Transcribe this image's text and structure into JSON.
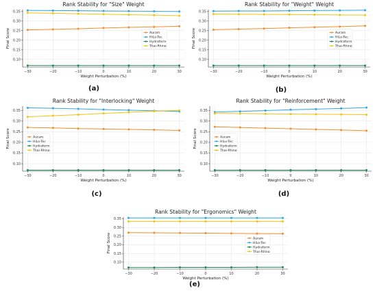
{
  "colors": {
    "Auram": "#f28e2b",
    "HiLo-Tec": "#2ea7e0",
    "Hydraform": "#1a8a4a",
    "Thai-Rhino": "#f1c40f",
    "grid": "#e3e3e3",
    "axis": "#333333"
  },
  "chart_data": [
    {
      "type": "line",
      "panel": "(a)",
      "title": "Rank Stability for \"Size\" Weight",
      "xlabel": "Weight Perturbation (%)",
      "ylabel": "Final Score",
      "x": [
        -30,
        -20,
        -10,
        0,
        10,
        20,
        30
      ],
      "xticks": [
        "−30",
        "−20",
        "−10",
        "0",
        "10",
        "20",
        "30"
      ],
      "xlim": [
        -32,
        32
      ],
      "ylim": [
        0.06,
        0.36
      ],
      "yticks": [
        "0.10",
        "0.15",
        "0.20",
        "0.25",
        "0.30",
        "0.35"
      ],
      "grid": true,
      "legend": "center-right",
      "series": [
        {
          "name": "Auram",
          "values": [
            0.254,
            0.257,
            0.26,
            0.264,
            0.267,
            0.27,
            0.273
          ]
        },
        {
          "name": "HiLo-Tec",
          "values": [
            0.356,
            0.355,
            0.354,
            0.353,
            0.352,
            0.351,
            0.35
          ]
        },
        {
          "name": "Hydraform",
          "values": [
            0.068,
            0.068,
            0.068,
            0.068,
            0.068,
            0.068,
            0.068
          ]
        },
        {
          "name": "Thai-Rhino",
          "values": [
            0.343,
            0.341,
            0.338,
            0.336,
            0.333,
            0.331,
            0.328
          ]
        }
      ]
    },
    {
      "type": "line",
      "panel": "(b)",
      "title": "Rank Stability for \"Weight\" Weight",
      "xlabel": "Weight Perturbation (%)",
      "ylabel": "Final Score",
      "x": [
        -30,
        -20,
        -10,
        0,
        10,
        20,
        30
      ],
      "xticks": [
        "−30",
        "−20",
        "−10",
        "0",
        "10",
        "20",
        "30"
      ],
      "xlim": [
        -32,
        32
      ],
      "ylim": [
        0.06,
        0.36
      ],
      "yticks": [
        "0.10",
        "0.15",
        "0.20",
        "0.25",
        "0.30",
        "0.35"
      ],
      "grid": true,
      "legend": "center-right",
      "series": [
        {
          "name": "Auram",
          "values": [
            0.255,
            0.258,
            0.261,
            0.265,
            0.268,
            0.271,
            0.275
          ]
        },
        {
          "name": "HiLo-Tec",
          "values": [
            0.352,
            0.353,
            0.353,
            0.354,
            0.355,
            0.356,
            0.357
          ]
        },
        {
          "name": "Hydraform",
          "values": [
            0.068,
            0.068,
            0.068,
            0.068,
            0.068,
            0.068,
            0.068
          ]
        },
        {
          "name": "Thai-Rhino",
          "values": [
            0.337,
            0.336,
            0.335,
            0.334,
            0.333,
            0.332,
            0.331
          ]
        }
      ]
    },
    {
      "type": "line",
      "panel": "(c)",
      "title": "Rank Stability for \"Interlocking\" Weight",
      "xlabel": "Weight Perturbation (%)",
      "ylabel": "Final Score",
      "x": [
        -30,
        -20,
        -10,
        0,
        10,
        20,
        30
      ],
      "xticks": [
        "−30",
        "−20",
        "−10",
        "0",
        "10",
        "20",
        "30"
      ],
      "xlim": [
        -32,
        32
      ],
      "ylim": [
        0.065,
        0.37
      ],
      "yticks": [
        "0.10",
        "0.15",
        "0.20",
        "0.25",
        "0.30",
        "0.35"
      ],
      "grid": true,
      "legend": "center-left",
      "series": [
        {
          "name": "Auram",
          "values": [
            0.27,
            0.268,
            0.265,
            0.263,
            0.261,
            0.259,
            0.256
          ]
        },
        {
          "name": "HiLo-Tec",
          "values": [
            0.362,
            0.36,
            0.357,
            0.354,
            0.351,
            0.348,
            0.345
          ]
        },
        {
          "name": "Hydraform",
          "values": [
            0.07,
            0.07,
            0.07,
            0.07,
            0.07,
            0.07,
            0.07
          ]
        },
        {
          "name": "Thai-Rhino",
          "values": [
            0.32,
            0.325,
            0.33,
            0.336,
            0.341,
            0.346,
            0.35
          ]
        }
      ]
    },
    {
      "type": "line",
      "panel": "(d)",
      "title": "Rank Stability for \"Reinforcement\" Weight",
      "xlabel": "Weight Perturbation (%)",
      "ylabel": "Final Score",
      "x": [
        -30,
        -20,
        -10,
        0,
        10,
        20,
        30
      ],
      "xticks": [
        "−30",
        "−20",
        "−10",
        "0",
        "10",
        "20",
        "30"
      ],
      "xlim": [
        -32,
        32
      ],
      "ylim": [
        0.065,
        0.37
      ],
      "yticks": [
        "0.10",
        "0.15",
        "0.20",
        "0.25",
        "0.30",
        "0.35"
      ],
      "grid": true,
      "legend": "center-left",
      "series": [
        {
          "name": "Auram",
          "values": [
            0.273,
            0.27,
            0.267,
            0.264,
            0.261,
            0.258,
            0.255
          ]
        },
        {
          "name": "HiLo-Tec",
          "values": [
            0.342,
            0.345,
            0.349,
            0.353,
            0.356,
            0.359,
            0.363
          ]
        },
        {
          "name": "Hydraform",
          "values": [
            0.07,
            0.07,
            0.07,
            0.07,
            0.07,
            0.07,
            0.07
          ]
        },
        {
          "name": "Thai-Rhino",
          "values": [
            0.336,
            0.335,
            0.334,
            0.333,
            0.332,
            0.331,
            0.33
          ]
        }
      ]
    },
    {
      "type": "line",
      "panel": "(e)",
      "title": "Rank Stability for \"Ergonomics\" Weight",
      "xlabel": "Weight Perturbation (%)",
      "ylabel": "Final Score",
      "x": [
        -30,
        -20,
        -10,
        0,
        10,
        20,
        30
      ],
      "xticks": [
        "−30",
        "−20",
        "−10",
        "0",
        "10",
        "20",
        "30"
      ],
      "xlim": [
        -32,
        32
      ],
      "ylim": [
        0.06,
        0.36
      ],
      "yticks": [
        "0.10",
        "0.15",
        "0.20",
        "0.25",
        "0.30",
        "0.35"
      ],
      "grid": true,
      "legend": "center-right",
      "series": [
        {
          "name": "Auram",
          "values": [
            0.27,
            0.269,
            0.268,
            0.267,
            0.266,
            0.265,
            0.264
          ]
        },
        {
          "name": "HiLo-Tec",
          "values": [
            0.355,
            0.355,
            0.355,
            0.355,
            0.355,
            0.355,
            0.355
          ]
        },
        {
          "name": "Hydraform",
          "values": [
            0.069,
            0.069,
            0.07,
            0.07,
            0.07,
            0.071,
            0.071
          ]
        },
        {
          "name": "Thai-Rhino",
          "values": [
            0.335,
            0.335,
            0.335,
            0.335,
            0.335,
            0.335,
            0.335
          ]
        }
      ]
    }
  ]
}
